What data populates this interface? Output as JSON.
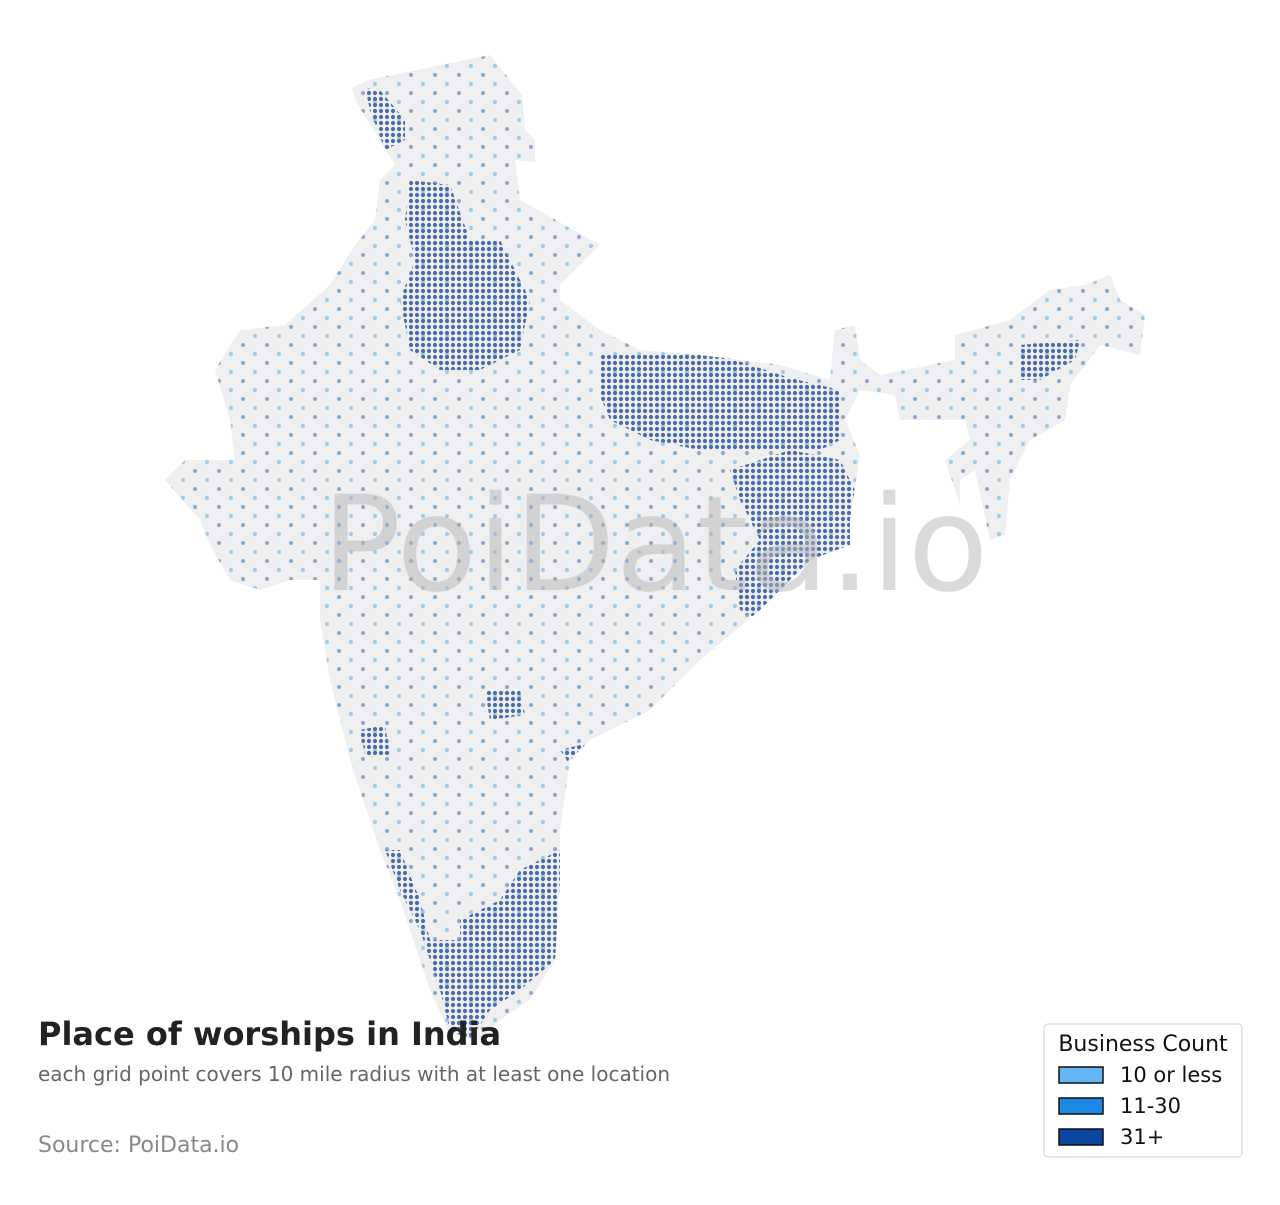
{
  "map": {
    "title": "Place of worships in India",
    "subtitle": "each grid point covers 10 mile radius with at least one location",
    "source": "Source: PoiData.io",
    "watermark": "PoiData.io",
    "legend": {
      "title": "Business Count",
      "items": [
        {
          "label": "10 or less",
          "color": "#64b5f6"
        },
        {
          "label": "11-30",
          "color": "#1e88e5"
        },
        {
          "label": "31+",
          "color": "#0d47a1"
        }
      ]
    }
  }
}
